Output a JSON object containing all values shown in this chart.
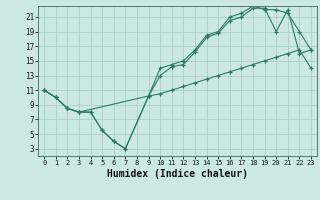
{
  "xlabel": "Humidex (Indice chaleur)",
  "bg_color": "#cce8e4",
  "grid_color": "#aacfca",
  "line_color": "#2a7a6a",
  "xlim": [
    -0.5,
    23.5
  ],
  "ylim": [
    2,
    22.5
  ],
  "xticks": [
    0,
    1,
    2,
    3,
    4,
    5,
    6,
    7,
    8,
    9,
    10,
    11,
    12,
    13,
    14,
    15,
    16,
    17,
    18,
    19,
    20,
    21,
    22,
    23
  ],
  "yticks": [
    3,
    5,
    7,
    9,
    11,
    13,
    15,
    17,
    19,
    21
  ],
  "line1_x": [
    0,
    1,
    2,
    3,
    4,
    5,
    6,
    7,
    9,
    10,
    11,
    12,
    13,
    14,
    15,
    16,
    17,
    18,
    19,
    20,
    21,
    22,
    23
  ],
  "line1_y": [
    11,
    10,
    8.5,
    8,
    8,
    5.5,
    4,
    3,
    10.2,
    13,
    14.2,
    14.5,
    16.2,
    18.2,
    18.8,
    20.5,
    21,
    22.2,
    22.2,
    19,
    22,
    16,
    16.5
  ],
  "line2_x": [
    0,
    1,
    2,
    3,
    4,
    5,
    6,
    7,
    9,
    10,
    11,
    12,
    13,
    14,
    15,
    16,
    17,
    18,
    19,
    20,
    21,
    22,
    23
  ],
  "line2_y": [
    11,
    10,
    8.5,
    8,
    8,
    5.5,
    4,
    3,
    10.2,
    14,
    14.5,
    15,
    16.5,
    18.5,
    19,
    21,
    21.5,
    22.5,
    22,
    22,
    21.5,
    19,
    16.5
  ],
  "line3_x": [
    0,
    1,
    2,
    3,
    9,
    10,
    11,
    12,
    13,
    14,
    15,
    16,
    17,
    18,
    19,
    20,
    21,
    22,
    23
  ],
  "line3_y": [
    11,
    10,
    8.5,
    8,
    10.2,
    10.5,
    11,
    11.5,
    12,
    12.5,
    13,
    13.5,
    14,
    14.5,
    15,
    15.5,
    16,
    16.5,
    14
  ]
}
